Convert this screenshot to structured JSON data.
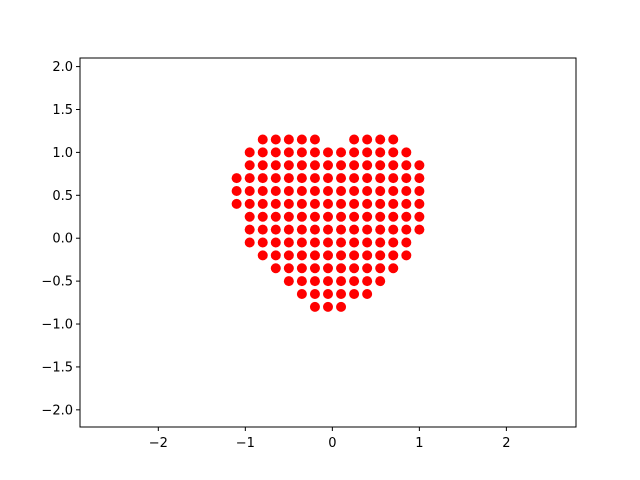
{
  "chart_data": {
    "type": "scatter",
    "title": "",
    "xlabel": "",
    "ylabel": "",
    "xlim": [
      -2.9,
      2.8
    ],
    "ylim": [
      -2.2,
      2.1
    ],
    "grid": false,
    "marker_color": "#ff0000",
    "x_ticks": [
      -2,
      -1,
      0,
      1,
      2
    ],
    "x_tick_labels": [
      "−2",
      "−1",
      "0",
      "1",
      "2"
    ],
    "y_ticks": [
      2.0,
      1.5,
      1.0,
      0.5,
      0.0,
      -0.5,
      -1.0,
      -1.5,
      -2.0
    ],
    "y_tick_labels": [
      "2.0",
      "1.5",
      "1.0",
      "0.5",
      "0.0",
      "−0.5",
      "−1.0",
      "−1.5",
      "−2.0"
    ],
    "points": [
      [
        -0.8,
        1.15
      ],
      [
        -0.65,
        1.15
      ],
      [
        -0.5,
        1.15
      ],
      [
        -0.35,
        1.15
      ],
      [
        -0.2,
        1.15
      ],
      [
        0.25,
        1.15
      ],
      [
        0.4,
        1.15
      ],
      [
        0.55,
        1.15
      ],
      [
        0.7,
        1.15
      ],
      [
        -0.95,
        1.0
      ],
      [
        -0.8,
        1.0
      ],
      [
        -0.65,
        1.0
      ],
      [
        -0.5,
        1.0
      ],
      [
        -0.35,
        1.0
      ],
      [
        -0.2,
        1.0
      ],
      [
        -0.05,
        1.0
      ],
      [
        0.1,
        1.0
      ],
      [
        0.25,
        1.0
      ],
      [
        0.4,
        1.0
      ],
      [
        0.55,
        1.0
      ],
      [
        0.7,
        1.0
      ],
      [
        0.85,
        1.0
      ],
      [
        -0.95,
        0.85
      ],
      [
        -0.8,
        0.85
      ],
      [
        -0.65,
        0.85
      ],
      [
        -0.5,
        0.85
      ],
      [
        -0.35,
        0.85
      ],
      [
        -0.2,
        0.85
      ],
      [
        -0.05,
        0.85
      ],
      [
        0.1,
        0.85
      ],
      [
        0.25,
        0.85
      ],
      [
        0.4,
        0.85
      ],
      [
        0.55,
        0.85
      ],
      [
        0.7,
        0.85
      ],
      [
        0.85,
        0.85
      ],
      [
        1.0,
        0.85
      ],
      [
        -1.1,
        0.7
      ],
      [
        -0.95,
        0.7
      ],
      [
        -0.8,
        0.7
      ],
      [
        -0.65,
        0.7
      ],
      [
        -0.5,
        0.7
      ],
      [
        -0.35,
        0.7
      ],
      [
        -0.2,
        0.7
      ],
      [
        -0.05,
        0.7
      ],
      [
        0.1,
        0.7
      ],
      [
        0.25,
        0.7
      ],
      [
        0.4,
        0.7
      ],
      [
        0.55,
        0.7
      ],
      [
        0.7,
        0.7
      ],
      [
        0.85,
        0.7
      ],
      [
        1.0,
        0.7
      ],
      [
        -1.1,
        0.55
      ],
      [
        -0.95,
        0.55
      ],
      [
        -0.8,
        0.55
      ],
      [
        -0.65,
        0.55
      ],
      [
        -0.5,
        0.55
      ],
      [
        -0.35,
        0.55
      ],
      [
        -0.2,
        0.55
      ],
      [
        -0.05,
        0.55
      ],
      [
        0.1,
        0.55
      ],
      [
        0.25,
        0.55
      ],
      [
        0.4,
        0.55
      ],
      [
        0.55,
        0.55
      ],
      [
        0.7,
        0.55
      ],
      [
        0.85,
        0.55
      ],
      [
        1.0,
        0.55
      ],
      [
        -1.1,
        0.4
      ],
      [
        -0.95,
        0.4
      ],
      [
        -0.8,
        0.4
      ],
      [
        -0.65,
        0.4
      ],
      [
        -0.5,
        0.4
      ],
      [
        -0.35,
        0.4
      ],
      [
        -0.2,
        0.4
      ],
      [
        -0.05,
        0.4
      ],
      [
        0.1,
        0.4
      ],
      [
        0.25,
        0.4
      ],
      [
        0.4,
        0.4
      ],
      [
        0.55,
        0.4
      ],
      [
        0.7,
        0.4
      ],
      [
        0.85,
        0.4
      ],
      [
        1.0,
        0.4
      ],
      [
        -0.95,
        0.25
      ],
      [
        -0.8,
        0.25
      ],
      [
        -0.65,
        0.25
      ],
      [
        -0.5,
        0.25
      ],
      [
        -0.35,
        0.25
      ],
      [
        -0.2,
        0.25
      ],
      [
        -0.05,
        0.25
      ],
      [
        0.1,
        0.25
      ],
      [
        0.25,
        0.25
      ],
      [
        0.4,
        0.25
      ],
      [
        0.55,
        0.25
      ],
      [
        0.7,
        0.25
      ],
      [
        0.85,
        0.25
      ],
      [
        1.0,
        0.25
      ],
      [
        -0.95,
        0.1
      ],
      [
        -0.8,
        0.1
      ],
      [
        -0.65,
        0.1
      ],
      [
        -0.5,
        0.1
      ],
      [
        -0.35,
        0.1
      ],
      [
        -0.2,
        0.1
      ],
      [
        -0.05,
        0.1
      ],
      [
        0.1,
        0.1
      ],
      [
        0.25,
        0.1
      ],
      [
        0.4,
        0.1
      ],
      [
        0.55,
        0.1
      ],
      [
        0.7,
        0.1
      ],
      [
        0.85,
        0.1
      ],
      [
        1.0,
        0.1
      ],
      [
        -0.95,
        -0.05
      ],
      [
        -0.8,
        -0.05
      ],
      [
        -0.65,
        -0.05
      ],
      [
        -0.5,
        -0.05
      ],
      [
        -0.35,
        -0.05
      ],
      [
        -0.2,
        -0.05
      ],
      [
        -0.05,
        -0.05
      ],
      [
        0.1,
        -0.05
      ],
      [
        0.25,
        -0.05
      ],
      [
        0.4,
        -0.05
      ],
      [
        0.55,
        -0.05
      ],
      [
        0.7,
        -0.05
      ],
      [
        0.85,
        -0.05
      ],
      [
        -0.8,
        -0.2
      ],
      [
        -0.65,
        -0.2
      ],
      [
        -0.5,
        -0.2
      ],
      [
        -0.35,
        -0.2
      ],
      [
        -0.2,
        -0.2
      ],
      [
        -0.05,
        -0.2
      ],
      [
        0.1,
        -0.2
      ],
      [
        0.25,
        -0.2
      ],
      [
        0.4,
        -0.2
      ],
      [
        0.55,
        -0.2
      ],
      [
        0.7,
        -0.2
      ],
      [
        0.85,
        -0.2
      ],
      [
        -0.65,
        -0.35
      ],
      [
        -0.5,
        -0.35
      ],
      [
        -0.35,
        -0.35
      ],
      [
        -0.2,
        -0.35
      ],
      [
        -0.05,
        -0.35
      ],
      [
        0.1,
        -0.35
      ],
      [
        0.25,
        -0.35
      ],
      [
        0.4,
        -0.35
      ],
      [
        0.55,
        -0.35
      ],
      [
        0.7,
        -0.35
      ],
      [
        -0.5,
        -0.5
      ],
      [
        -0.35,
        -0.5
      ],
      [
        -0.2,
        -0.5
      ],
      [
        -0.05,
        -0.5
      ],
      [
        0.1,
        -0.5
      ],
      [
        0.25,
        -0.5
      ],
      [
        0.4,
        -0.5
      ],
      [
        0.55,
        -0.5
      ],
      [
        -0.35,
        -0.65
      ],
      [
        -0.2,
        -0.65
      ],
      [
        -0.05,
        -0.65
      ],
      [
        0.1,
        -0.65
      ],
      [
        0.25,
        -0.65
      ],
      [
        0.4,
        -0.65
      ],
      [
        -0.2,
        -0.8
      ],
      [
        -0.05,
        -0.8
      ],
      [
        0.1,
        -0.8
      ]
    ]
  }
}
